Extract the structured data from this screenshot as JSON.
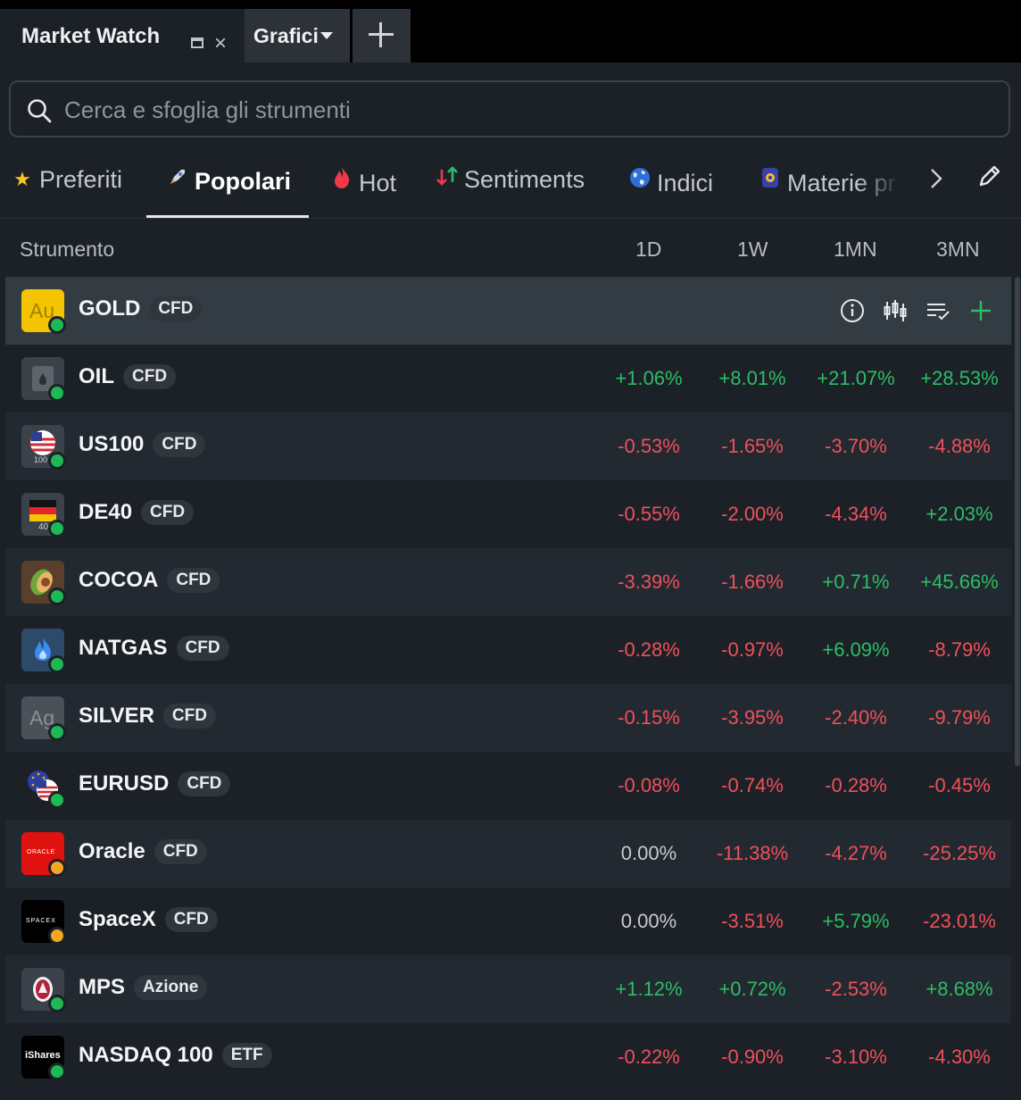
{
  "tabs": {
    "market_watch": "Market Watch",
    "grafici": "Grafici"
  },
  "search": {
    "placeholder": "Cerca e sfoglia gli strumenti"
  },
  "categories": [
    {
      "label": "Preferiti",
      "icon": "star-icon"
    },
    {
      "label": "Popolari",
      "icon": "rocket-icon",
      "active": true
    },
    {
      "label": "Hot",
      "icon": "fire-icon"
    },
    {
      "label": "Sentiments",
      "icon": "arrows-updown-icon"
    },
    {
      "label": "Indici",
      "icon": "globe-icon"
    },
    {
      "label": "Materie pr",
      "icon": "commodity-icon"
    }
  ],
  "columns": {
    "instrument": "Strumento",
    "d1": "1D",
    "w1": "1W",
    "mn1": "1MN",
    "mn3": "3MN"
  },
  "colors": {
    "positive": "#2dbd66",
    "negative": "#f0505a",
    "accent": "#2dbd66"
  },
  "instruments": [
    {
      "name": "GOLD",
      "type": "CFD",
      "logo_text": "Au",
      "status": "open",
      "d1": "",
      "w1": "",
      "mn1": "",
      "mn3": ""
    },
    {
      "name": "OIL",
      "type": "CFD",
      "logo_text": "",
      "status": "open",
      "d1": "+1.06%",
      "w1": "+8.01%",
      "mn1": "+21.07%",
      "mn3": "+28.53%"
    },
    {
      "name": "US100",
      "type": "CFD",
      "logo_text": "100",
      "status": "open",
      "d1": "-0.53%",
      "w1": "-1.65%",
      "mn1": "-3.70%",
      "mn3": "-4.88%"
    },
    {
      "name": "DE40",
      "type": "CFD",
      "logo_text": "40",
      "status": "open",
      "d1": "-0.55%",
      "w1": "-2.00%",
      "mn1": "-4.34%",
      "mn3": "+2.03%"
    },
    {
      "name": "COCOA",
      "type": "CFD",
      "logo_text": "",
      "status": "open",
      "d1": "-3.39%",
      "w1": "-1.66%",
      "mn1": "+0.71%",
      "mn3": "+45.66%"
    },
    {
      "name": "NATGAS",
      "type": "CFD",
      "logo_text": "",
      "status": "open",
      "d1": "-0.28%",
      "w1": "-0.97%",
      "mn1": "+6.09%",
      "mn3": "-8.79%"
    },
    {
      "name": "SILVER",
      "type": "CFD",
      "logo_text": "Ag",
      "status": "open",
      "d1": "-0.15%",
      "w1": "-3.95%",
      "mn1": "-2.40%",
      "mn3": "-9.79%"
    },
    {
      "name": "EURUSD",
      "type": "CFD",
      "logo_text": "",
      "status": "open",
      "d1": "-0.08%",
      "w1": "-0.74%",
      "mn1": "-0.28%",
      "mn3": "-0.45%"
    },
    {
      "name": "Oracle",
      "type": "CFD",
      "logo_text": "ORACLE",
      "status": "closed",
      "d1": "0.00%",
      "w1": "-11.38%",
      "mn1": "-4.27%",
      "mn3": "-25.25%"
    },
    {
      "name": "SpaceX",
      "type": "CFD",
      "logo_text": "SPACEX",
      "status": "closed",
      "d1": "0.00%",
      "w1": "-3.51%",
      "mn1": "+5.79%",
      "mn3": "-23.01%"
    },
    {
      "name": "MPS",
      "type": "Azione",
      "logo_text": "",
      "status": "open",
      "d1": "+1.12%",
      "w1": "+0.72%",
      "mn1": "-2.53%",
      "mn3": "+8.68%"
    },
    {
      "name": "NASDAQ 100",
      "type": "ETF",
      "logo_text": "iShares",
      "status": "open",
      "d1": "-0.22%",
      "w1": "-0.90%",
      "mn1": "-3.10%",
      "mn3": "-4.30%"
    }
  ]
}
